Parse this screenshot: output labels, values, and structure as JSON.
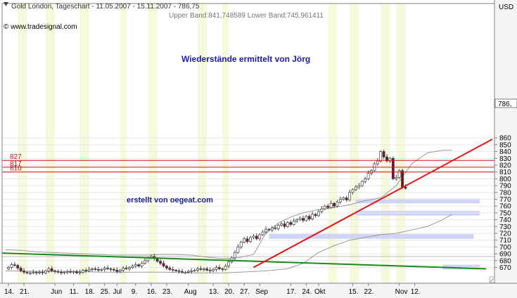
{
  "header": {
    "title": "Gold London, Tageschart - 11.05.2007 - 15.11.2007 - 786,75",
    "source": "© www.tradesignal.com",
    "bands_label": "Upper Band:841,748589 Lower Band:745,961411"
  },
  "annotations": {
    "resistance_title": "Wiederstände ermittelt von Jörg",
    "credit": "erstellt von oegeat.com"
  },
  "chart_data": {
    "type": "candlestick",
    "currency_label": "USD",
    "last_price_label": "786,",
    "ylim": [
      662,
      862
    ],
    "y_ticks": [
      670,
      680,
      690,
      700,
      710,
      720,
      730,
      740,
      750,
      760,
      770,
      780,
      790,
      800,
      810,
      820,
      830,
      840,
      850,
      860
    ],
    "x_labels": [
      {
        "t": "14.",
        "d": 0
      },
      {
        "t": "21.",
        "d": 5
      },
      {
        "t": "Jun",
        "d": 15
      },
      {
        "t": "11.",
        "d": 21
      },
      {
        "t": "18.",
        "d": 26
      },
      {
        "t": "25.",
        "d": 31
      },
      {
        "t": "Jul",
        "d": 35
      },
      {
        "t": "9.",
        "d": 41
      },
      {
        "t": "16.",
        "d": 46
      },
      {
        "t": "23.",
        "d": 51
      },
      {
        "t": "Aug",
        "d": 58
      },
      {
        "t": "13.",
        "d": 66
      },
      {
        "t": "20.",
        "d": 71
      },
      {
        "t": "27.",
        "d": 76
      },
      {
        "t": "Sep",
        "d": 81
      },
      {
        "t": "17.",
        "d": 91
      },
      {
        "t": "24.",
        "d": 96
      },
      {
        "t": "Okt",
        "d": 100
      },
      {
        "t": "15.",
        "d": 111
      },
      {
        "t": "22.",
        "d": 116
      },
      {
        "t": "Nov",
        "d": 126
      },
      {
        "t": "12.",
        "d": 131
      }
    ],
    "resistance_levels": [
      {
        "value": 827,
        "label": "827"
      },
      {
        "value": 817,
        "label": "817"
      },
      {
        "value": 810,
        "label": "810"
      }
    ],
    "support_zones": [
      {
        "from": 764,
        "to": 771,
        "d0": 112,
        "d1": 152
      },
      {
        "from": 746,
        "to": 753,
        "d0": 112,
        "d1": 152
      },
      {
        "from": 712,
        "to": 719,
        "d0": 84,
        "d1": 150
      },
      {
        "from": 667,
        "to": 674,
        "d0": 140,
        "d1": 152
      }
    ],
    "red_trend": {
      "d0": 79,
      "v0": 670,
      "d1": 156,
      "v1": 858
    },
    "green_trend": {
      "d0": -2,
      "v0": 691,
      "d1": 154,
      "v1": 668
    },
    "reference_line": 686,
    "vertical_bands": [
      {
        "d0": 3,
        "d1": 6
      },
      {
        "d0": 12,
        "d1": 15
      },
      {
        "d0": 23,
        "d1": 26
      },
      {
        "d0": 36,
        "d1": 38
      },
      {
        "d0": 45,
        "d1": 48
      },
      {
        "d0": 61,
        "d1": 64
      },
      {
        "d0": 69,
        "d1": 71
      },
      {
        "d0": 103,
        "d1": 106
      },
      {
        "d0": 110,
        "d1": 113
      },
      {
        "d0": 120,
        "d1": 123
      },
      {
        "d0": 125,
        "d1": 128
      }
    ],
    "start_close": 668,
    "closes": [
      670,
      674,
      673,
      669,
      665,
      663,
      662,
      662,
      663,
      662,
      663,
      662,
      665,
      668,
      665,
      664,
      663,
      662,
      663,
      664,
      663,
      664,
      662,
      663,
      666,
      665,
      667,
      668,
      667,
      666,
      667,
      669,
      668,
      667,
      666,
      664,
      666,
      669,
      668,
      670,
      672,
      674,
      672,
      676,
      680,
      684,
      686,
      683,
      679,
      676,
      672,
      669,
      667,
      666,
      665,
      664,
      663,
      663,
      664,
      665,
      666,
      668,
      667,
      668,
      666,
      665,
      667,
      670,
      668,
      667,
      672,
      678,
      684,
      692,
      700,
      707,
      712,
      708,
      714,
      716,
      712,
      718,
      722,
      726,
      725,
      728,
      727,
      732,
      734,
      730,
      736,
      733,
      738,
      740,
      742,
      739,
      745,
      741,
      748,
      746,
      752,
      756,
      760,
      758,
      764,
      760,
      766,
      770,
      772,
      769,
      780,
      784,
      788,
      790,
      796,
      800,
      808,
      812,
      822,
      826,
      840,
      832,
      826,
      830,
      800,
      802,
      812,
      788,
      786
    ],
    "upper_band": [
      [
        -1,
        696
      ],
      [
        4,
        695
      ],
      [
        9,
        693
      ],
      [
        14,
        692
      ],
      [
        19,
        691
      ],
      [
        24,
        690
      ],
      [
        29,
        689
      ],
      [
        34,
        688
      ],
      [
        39,
        688
      ],
      [
        44,
        688
      ],
      [
        49,
        689
      ],
      [
        54,
        689
      ],
      [
        59,
        688
      ],
      [
        64,
        685
      ],
      [
        69,
        683
      ],
      [
        74,
        684
      ],
      [
        79,
        689
      ],
      [
        83,
        720
      ],
      [
        87,
        735
      ],
      [
        91,
        744
      ],
      [
        95,
        750
      ],
      [
        100,
        755
      ],
      [
        105,
        758
      ],
      [
        110,
        762
      ],
      [
        115,
        768
      ],
      [
        120,
        772
      ],
      [
        125,
        790
      ],
      [
        130,
        822
      ],
      [
        135,
        838
      ],
      [
        140,
        842
      ],
      [
        143,
        842
      ]
    ],
    "lower_band": [
      [
        -1,
        665
      ],
      [
        10,
        664
      ],
      [
        20,
        664
      ],
      [
        30,
        663
      ],
      [
        40,
        663
      ],
      [
        50,
        663
      ],
      [
        60,
        662
      ],
      [
        70,
        662
      ],
      [
        83,
        665
      ],
      [
        90,
        668
      ],
      [
        95,
        676
      ],
      [
        100,
        692
      ],
      [
        105,
        702
      ],
      [
        110,
        710
      ],
      [
        115,
        714
      ],
      [
        120,
        718
      ],
      [
        125,
        720
      ],
      [
        130,
        725
      ],
      [
        135,
        730
      ],
      [
        140,
        740
      ],
      [
        143,
        748
      ]
    ]
  }
}
